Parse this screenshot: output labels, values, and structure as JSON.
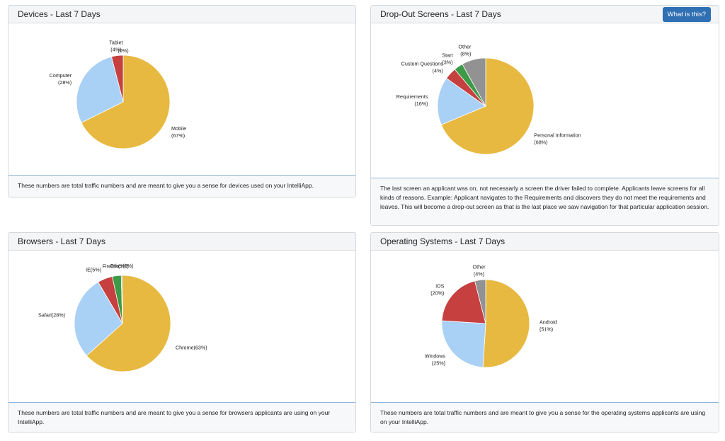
{
  "colors": {
    "yellow": "#e8b940",
    "blue": "#a9d0f5",
    "red": "#c5403f",
    "green": "#3d9a46",
    "gray": "#929292"
  },
  "panels": {
    "devices": {
      "title": "Devices - Last 7 Days",
      "footer": "These numbers are total traffic numbers and are meant to give you a sense for devices used on your IntelliApp."
    },
    "dropout": {
      "title": "Drop-Out Screens - Last 7 Days",
      "help_button": "What is this?",
      "footer": "The last screen an applicant was on, not necessarly a screen the driver failed to complete. Applicants leave screens for all kinds of reasons. Example: Applicant navigates to the Requirements and discovers they do not meet the requirements and leaves. This will become a drop-out screen as that is the last place we saw navigation for that particular application session."
    },
    "browsers": {
      "title": "Browsers - Last 7 Days",
      "footer": "These numbers are total traffic numbers and are meant to give you a sense for browsers applicants are using on your IntelliApp."
    },
    "os": {
      "title": "Operating Systems - Last 7 Days",
      "footer": "These numbers are total traffic numbers and are meant to give you a sense for the operating systems applicants are using on your IntelliApp."
    }
  },
  "chart_data": [
    {
      "id": "devices",
      "type": "pie",
      "title": "Devices - Last 7 Days",
      "slices": [
        {
          "label": "Mobile",
          "pct": "(67%)",
          "value": 67,
          "color": "#e8b940"
        },
        {
          "label": "Computer",
          "pct": "(28%)",
          "value": 28,
          "color": "#a9d0f5"
        },
        {
          "label": "Tablet",
          "pct": "(4%)",
          "value": 4,
          "color": "#c5403f"
        },
        {
          "label": "",
          "pct": "(0%)",
          "value": 0,
          "color": "#3d9a46"
        }
      ]
    },
    {
      "id": "dropout",
      "type": "pie",
      "title": "Drop-Out Screens - Last 7 Days",
      "slices": [
        {
          "label": "Personal Information",
          "pct": "(68%)",
          "value": 68,
          "color": "#e8b940"
        },
        {
          "label": "Requirements",
          "pct": "(16%)",
          "value": 16,
          "color": "#a9d0f5"
        },
        {
          "label": "Custom Questions",
          "pct": "(4%)",
          "value": 4,
          "color": "#c5403f"
        },
        {
          "label": "Start",
          "pct": "(3%)",
          "value": 3,
          "color": "#3d9a46"
        },
        {
          "label": "Other",
          "pct": "(8%)",
          "value": 8,
          "color": "#929292"
        }
      ]
    },
    {
      "id": "browsers",
      "type": "pie",
      "title": "Browsers - Last 7 Days",
      "slices": [
        {
          "label": "Chrome(63%)",
          "value": 63,
          "color": "#e8b940"
        },
        {
          "label": "Safari(28%)",
          "value": 28,
          "color": "#a9d0f5"
        },
        {
          "label": "IE(5%)",
          "value": 5,
          "color": "#c5403f"
        },
        {
          "label": "Firefox(3%)",
          "value": 3,
          "color": "#3d9a46"
        },
        {
          "label": "Other(0%)",
          "value": 0.4,
          "color": "#929292"
        }
      ]
    },
    {
      "id": "os",
      "type": "pie",
      "title": "Operating Systems - Last 7 Days",
      "slices": [
        {
          "label": "Android",
          "pct": "(51%)",
          "value": 51,
          "color": "#e8b940"
        },
        {
          "label": "Windows",
          "pct": "(25%)",
          "value": 25,
          "color": "#a9d0f5"
        },
        {
          "label": "iOS",
          "pct": "(20%)",
          "value": 20,
          "color": "#c5403f"
        },
        {
          "label": "Other",
          "pct": "(4%)",
          "value": 4,
          "color": "#929292"
        }
      ]
    }
  ]
}
